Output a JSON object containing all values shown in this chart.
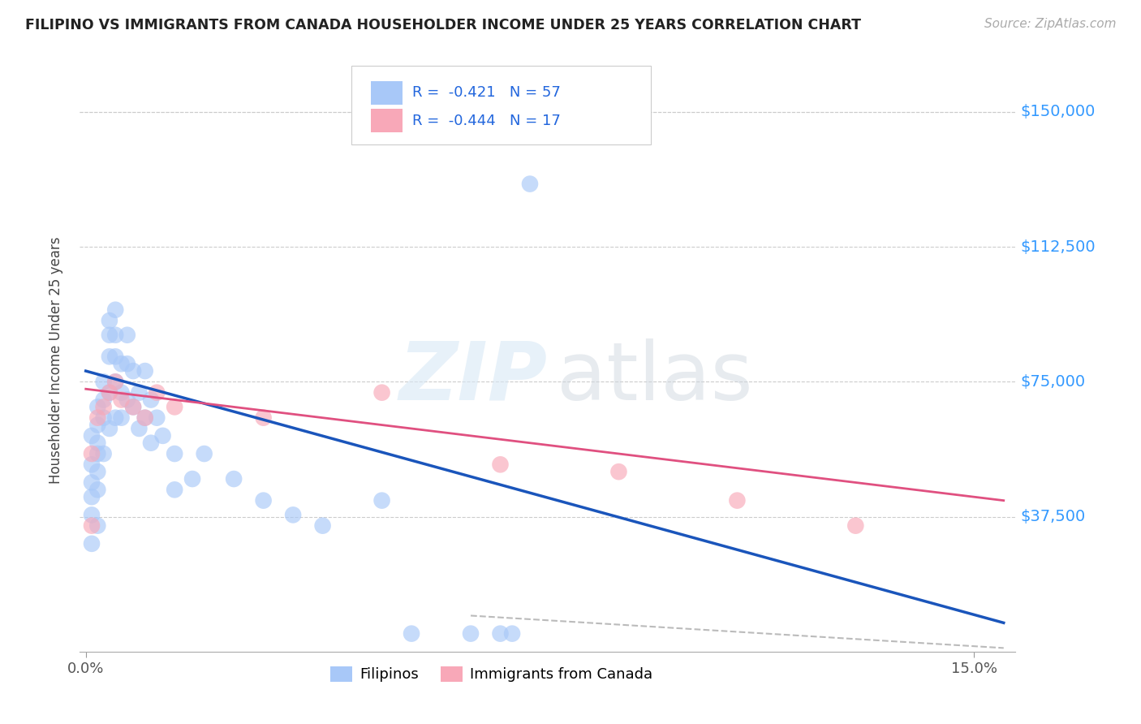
{
  "title": "FILIPINO VS IMMIGRANTS FROM CANADA HOUSEHOLDER INCOME UNDER 25 YEARS CORRELATION CHART",
  "source": "Source: ZipAtlas.com",
  "ylabel": "Householder Income Under 25 years",
  "ytick_labels": [
    "$150,000",
    "$112,500",
    "$75,000",
    "$37,500"
  ],
  "ytick_values": [
    150000,
    112500,
    75000,
    37500
  ],
  "ymin": 0,
  "ymax": 162000,
  "xmin": -0.001,
  "xmax": 0.157,
  "watermark_zip": "ZIP",
  "watermark_atlas": "atlas",
  "filipino_color": "#a8c8f8",
  "canada_color": "#f8a8b8",
  "blue_line_color": "#1a55bb",
  "pink_line_color": "#e05080",
  "dashed_line_color": "#bbbbbb",
  "filipino_x": [
    0.001,
    0.001,
    0.001,
    0.001,
    0.001,
    0.001,
    0.002,
    0.002,
    0.002,
    0.002,
    0.002,
    0.002,
    0.002,
    0.003,
    0.003,
    0.003,
    0.003,
    0.004,
    0.004,
    0.004,
    0.004,
    0.004,
    0.005,
    0.005,
    0.005,
    0.005,
    0.005,
    0.006,
    0.006,
    0.006,
    0.007,
    0.007,
    0.007,
    0.008,
    0.008,
    0.009,
    0.009,
    0.01,
    0.01,
    0.011,
    0.011,
    0.012,
    0.013,
    0.015,
    0.015,
    0.018,
    0.02,
    0.025,
    0.03,
    0.035,
    0.04,
    0.05,
    0.055,
    0.065,
    0.07,
    0.072,
    0.075
  ],
  "filipino_y": [
    60000,
    52000,
    47000,
    43000,
    38000,
    30000,
    68000,
    63000,
    58000,
    55000,
    50000,
    45000,
    35000,
    75000,
    70000,
    65000,
    55000,
    92000,
    88000,
    82000,
    72000,
    62000,
    95000,
    88000,
    82000,
    75000,
    65000,
    80000,
    72000,
    65000,
    88000,
    80000,
    70000,
    78000,
    68000,
    72000,
    62000,
    78000,
    65000,
    70000,
    58000,
    65000,
    60000,
    55000,
    45000,
    48000,
    55000,
    48000,
    42000,
    38000,
    35000,
    42000,
    5000,
    5000,
    5000,
    5000,
    130000
  ],
  "canada_x": [
    0.001,
    0.001,
    0.002,
    0.003,
    0.004,
    0.005,
    0.006,
    0.008,
    0.01,
    0.012,
    0.015,
    0.03,
    0.05,
    0.07,
    0.09,
    0.11,
    0.13
  ],
  "canada_y": [
    35000,
    55000,
    65000,
    68000,
    72000,
    75000,
    70000,
    68000,
    65000,
    72000,
    68000,
    65000,
    72000,
    52000,
    50000,
    42000,
    35000
  ],
  "blue_trend_x": [
    0.0,
    0.155
  ],
  "blue_trend_y": [
    78000,
    8000
  ],
  "pink_trend_x": [
    0.0,
    0.155
  ],
  "pink_trend_y": [
    73000,
    42000
  ],
  "dashed_trend_x": [
    0.065,
    0.155
  ],
  "dashed_trend_y": [
    10000,
    1000
  ]
}
